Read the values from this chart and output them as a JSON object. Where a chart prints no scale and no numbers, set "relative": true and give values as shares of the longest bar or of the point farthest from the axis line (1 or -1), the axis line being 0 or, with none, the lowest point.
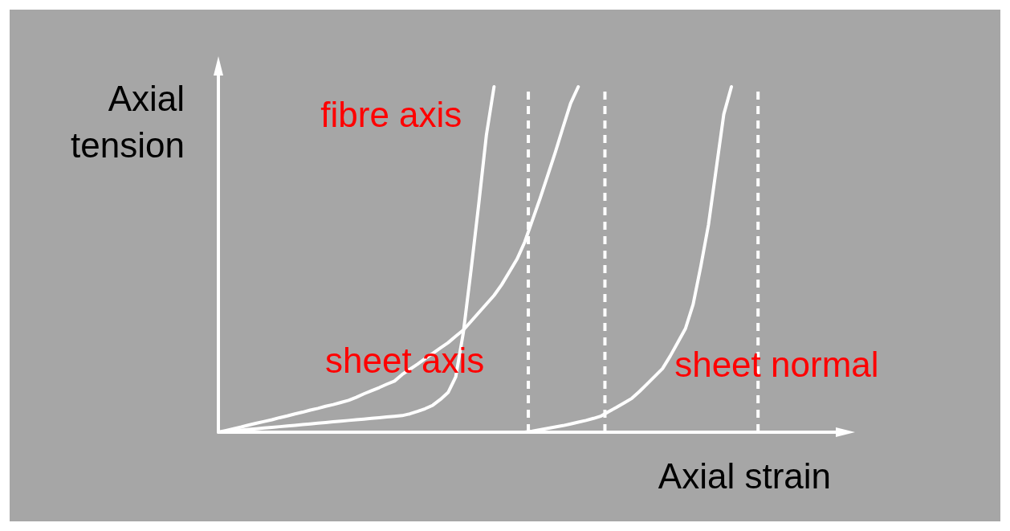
{
  "chart_data": {
    "type": "line",
    "relative": true,
    "xlabel": "Axial strain",
    "ylabel": "Axial tension",
    "grid": false,
    "legend": false,
    "marker": "none",
    "line_style": "solid",
    "categories": [
      null,
      null,
      null,
      null,
      null,
      null,
      null,
      null,
      null,
      null,
      null,
      null,
      null,
      null,
      null,
      null,
      null,
      null,
      null,
      null,
      null,
      null,
      null,
      null,
      null,
      null,
      null,
      null,
      null,
      null,
      null,
      null,
      null,
      null,
      null,
      null,
      null,
      null,
      null,
      null,
      null,
      null,
      null,
      null,
      null,
      null,
      null,
      null,
      null,
      null,
      null,
      null,
      null,
      null,
      null,
      null,
      null,
      null,
      null,
      null,
      null,
      null,
      null,
      null,
      null,
      null,
      null,
      null,
      null,
      null,
      null,
      null,
      null,
      null,
      null,
      null,
      null,
      null,
      null,
      null,
      null
    ],
    "series": [
      {
        "name": "fibre axis",
        "color": "#ffffff",
        "values": [
          0,
          0.002,
          0.004,
          0.006,
          0.008,
          0.01,
          0.012,
          0.014,
          0.016,
          0.018,
          0.02,
          0.022,
          0.024,
          0.026,
          0.028,
          0.03,
          0.032,
          0.034,
          0.036,
          0.038,
          0.04,
          0.042,
          0.044,
          0.046,
          0.048,
          0.053,
          0.06,
          0.068,
          0.078,
          0.095,
          0.115,
          0.16,
          0.29,
          0.47,
          0.66,
          0.86,
          1.0,
          null,
          null,
          null,
          null,
          null,
          null,
          null,
          null,
          null,
          null,
          null,
          null,
          null,
          null,
          null,
          null,
          null,
          null,
          null,
          null,
          null,
          null,
          null,
          null,
          null,
          null,
          null,
          null,
          null,
          null,
          null,
          null,
          null,
          null,
          null,
          null,
          null,
          null,
          null,
          null,
          null,
          null,
          null,
          null
        ]
      },
      {
        "name": "sheet axis",
        "color": "#ffffff",
        "values": [
          0,
          0.005,
          0.01,
          0.015,
          0.021,
          0.026,
          0.031,
          0.036,
          0.042,
          0.047,
          0.053,
          0.058,
          0.064,
          0.069,
          0.075,
          0.08,
          0.086,
          0.092,
          0.101,
          0.111,
          0.12,
          0.129,
          0.139,
          0.148,
          0.167,
          0.182,
          0.197,
          0.213,
          0.228,
          0.244,
          0.259,
          0.278,
          0.296,
          0.321,
          0.346,
          0.371,
          0.396,
          0.427,
          0.464,
          0.501,
          0.55,
          0.613,
          0.676,
          0.743,
          0.81,
          0.882,
          0.952,
          1.0,
          null,
          null,
          null,
          null,
          null,
          null,
          null,
          null,
          null,
          null,
          null,
          null,
          null,
          null,
          null,
          null,
          null,
          null,
          null,
          null,
          null,
          null,
          null,
          null,
          null,
          null,
          null,
          null,
          null,
          null,
          null,
          null,
          null
        ]
      },
      {
        "name": "sheet normal",
        "color": "#ffffff",
        "values": [
          null,
          null,
          null,
          null,
          null,
          null,
          null,
          null,
          null,
          null,
          null,
          null,
          null,
          null,
          null,
          null,
          null,
          null,
          null,
          null,
          null,
          null,
          null,
          null,
          null,
          null,
          null,
          null,
          null,
          null,
          null,
          null,
          null,
          null,
          null,
          null,
          null,
          null,
          null,
          null,
          0,
          0.003,
          0.007,
          0.011,
          0.015,
          0.019,
          0.024,
          0.029,
          0.034,
          0.04,
          0.047,
          0.06,
          0.072,
          0.085,
          0.098,
          0.118,
          0.14,
          0.162,
          0.184,
          0.22,
          0.26,
          0.3,
          0.37,
          0.48,
          0.6,
          0.76,
          0.92,
          1.0,
          null,
          null,
          null,
          null,
          null,
          null,
          null,
          null,
          null,
          null,
          null,
          null,
          null
        ]
      }
    ]
  }
}
